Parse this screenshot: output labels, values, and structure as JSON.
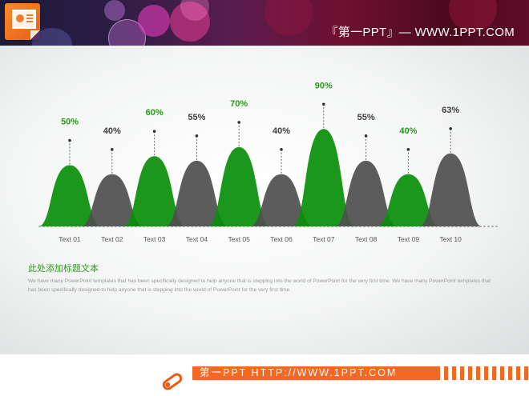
{
  "header": {
    "title": "『第一PPT』— WWW.1PPT.COM",
    "logo_icon": "powerpoint-icon"
  },
  "colors": {
    "green": "#0a900a",
    "gray": "#505050",
    "green_label": "#2a9a1a",
    "gray_label": "#404040",
    "accent_orange": "#f06a24"
  },
  "chart_data": {
    "type": "area",
    "style": "bell-shaped peaks",
    "categories": [
      "Text 01",
      "Text 02",
      "Text 03",
      "Text 04",
      "Text 05",
      "Text 06",
      "Text 07",
      "Text 08",
      "Text 09",
      "Text 10"
    ],
    "values": [
      50,
      40,
      60,
      55,
      70,
      40,
      90,
      55,
      40,
      63
    ],
    "labels": [
      "50%",
      "40%",
      "60%",
      "55%",
      "70%",
      "40%",
      "90%",
      "55%",
      "40%",
      "63%"
    ],
    "colors": [
      "green",
      "gray",
      "green",
      "gray",
      "green",
      "gray",
      "green",
      "gray",
      "green",
      "gray"
    ],
    "title": "",
    "xlabel": "",
    "ylabel": "",
    "ylim": [
      0,
      100
    ],
    "grid": false,
    "legend": null
  },
  "caption": {
    "title": "此处添加标题文本",
    "body": "We have many PowerPoint templates that has been specifically designed to help anyone that is stepping into the world of PowerPoint for the very first time. We have many PowerPoint templates that has been specifically designed to help anyone that is stepping into the world of PowerPoint for the very first time."
  },
  "footer": {
    "text": "第一PPT HTTP://WWW.1PPT.COM",
    "icon": "pencil-icon"
  }
}
